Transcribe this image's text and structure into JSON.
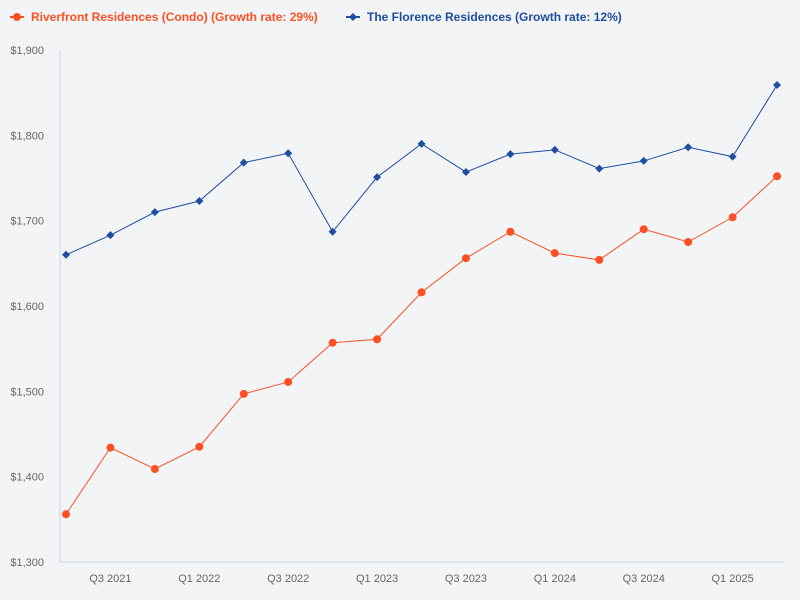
{
  "chart_data": {
    "type": "line",
    "title": "",
    "xlabel": "",
    "ylabel": "",
    "ylim": [
      1300,
      1900
    ],
    "y_ticks": [
      "$1,300",
      "$1,400",
      "$1,500",
      "$1,600",
      "$1,700",
      "$1,800",
      "$1,900"
    ],
    "y_tick_values": [
      1300,
      1400,
      1500,
      1600,
      1700,
      1800,
      1900
    ],
    "x_tick_labels": [
      "Q3 2021",
      "Q1 2022",
      "Q3 2022",
      "Q1 2023",
      "Q3 2023",
      "Q1 2024",
      "Q3 2024",
      "Q1 2025"
    ],
    "x_tick_indices": [
      1,
      3,
      5,
      7,
      9,
      11,
      13,
      15
    ],
    "grid": false,
    "legend_position": "top-left",
    "series": [
      {
        "name": "Riverfront Residences (Condo) (Growth rate: 29%)",
        "color": "#fc5024",
        "marker": "circle",
        "values": [
          1356,
          1434,
          1409,
          1435,
          1497,
          1511,
          1557,
          1561,
          1616,
          1656,
          1687,
          1662,
          1654,
          1690,
          1675,
          1704,
          1752
        ]
      },
      {
        "name": "The Florence Residences (Growth rate: 12%)",
        "color": "#1f4ea0",
        "marker": "diamond",
        "values": [
          1660,
          1683,
          1710,
          1723,
          1768,
          1779,
          1687,
          1751,
          1790,
          1757,
          1778,
          1783,
          1761,
          1770,
          1786,
          1775,
          1859
        ]
      }
    ]
  }
}
